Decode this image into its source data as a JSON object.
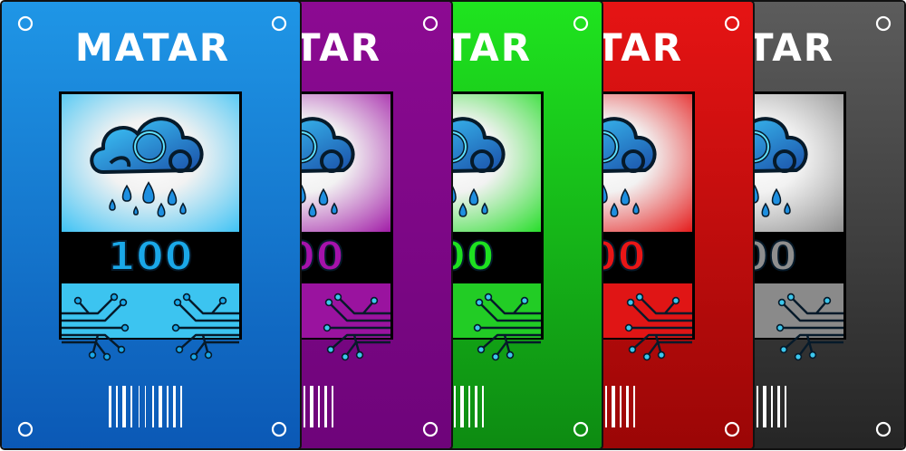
{
  "brand": "MATAR",
  "denomination": "100",
  "cards": [
    {
      "name": "blue",
      "bg_top": "#1f96e6",
      "bg_bottom": "#0b58b5",
      "panel_light": "#ffffff",
      "panel_dark": "#3cc2f4",
      "circuit_bg": "#3cc4f0",
      "value_color": "#1aa8e8",
      "node_color": "#1aa8e8"
    },
    {
      "name": "purple",
      "bg_top": "#8c0a92",
      "bg_bottom": "#6e047a",
      "panel_light": "#ffffff",
      "panel_dark": "#a01aa6",
      "circuit_bg": "#9a139f",
      "value_color": "#a512ab",
      "node_color": "#3cc8ee"
    },
    {
      "name": "green",
      "bg_top": "#1fe41f",
      "bg_bottom": "#0d8a12",
      "panel_light": "#ffffff",
      "panel_dark": "#25dd28",
      "circuit_bg": "#22cc25",
      "value_color": "#1ee020",
      "node_color": "#3cc8ee"
    },
    {
      "name": "red",
      "bg_top": "#e61414",
      "bg_bottom": "#9a0606",
      "panel_light": "#ffffff",
      "panel_dark": "#e51818",
      "circuit_bg": "#e01515",
      "value_color": "#e81616",
      "node_color": "#3cc8ee"
    },
    {
      "name": "gray",
      "bg_top": "#5c5c5c",
      "bg_bottom": "#252525",
      "panel_light": "#ffffff",
      "panel_dark": "#8e8e8e",
      "circuit_bg": "#8a8a8a",
      "value_color": "#8e8e8e",
      "node_color": "#3cc8ee"
    }
  ]
}
